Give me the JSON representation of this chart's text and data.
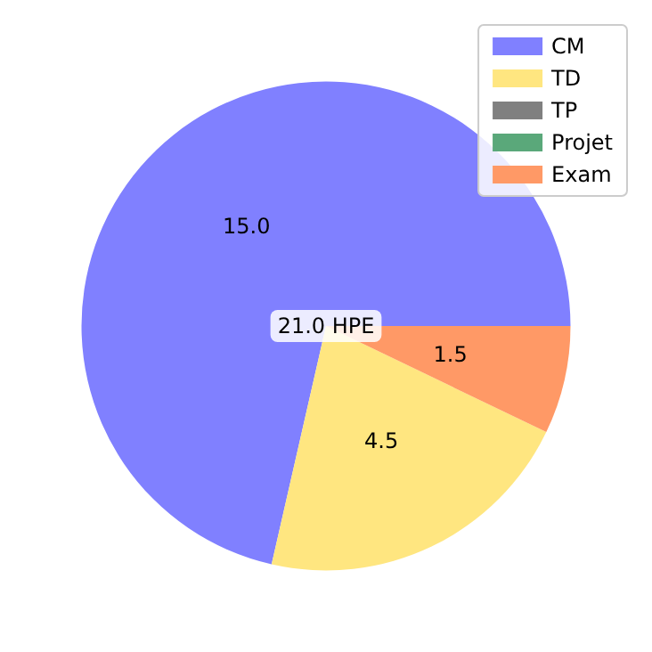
{
  "chart_data": {
    "type": "pie",
    "categories": [
      "CM",
      "TD",
      "TP",
      "Projet",
      "Exam"
    ],
    "values": [
      15,
      4.5,
      0,
      0,
      1.5
    ],
    "value_labels": [
      "15.0",
      "4.5",
      null,
      null,
      "1.5"
    ],
    "colors": [
      "#8080ff",
      "#ffe680",
      "#808080",
      "#5aa87a",
      "#ff9966"
    ],
    "annotations": [
      "21.0 HPE"
    ],
    "legend": "top right"
  }
}
